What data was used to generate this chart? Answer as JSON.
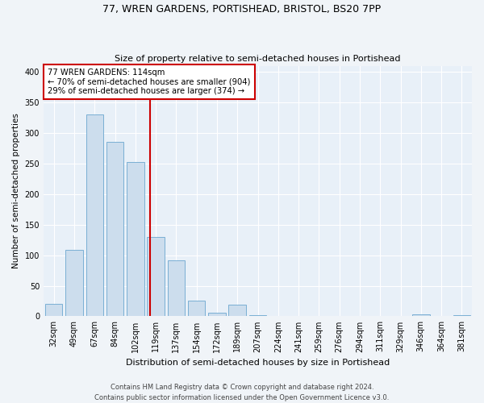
{
  "title1": "77, WREN GARDENS, PORTISHEAD, BRISTOL, BS20 7PP",
  "title2": "Size of property relative to semi-detached houses in Portishead",
  "xlabel": "Distribution of semi-detached houses by size in Portishead",
  "ylabel": "Number of semi-detached properties",
  "bar_labels": [
    "32sqm",
    "49sqm",
    "67sqm",
    "84sqm",
    "102sqm",
    "119sqm",
    "137sqm",
    "154sqm",
    "172sqm",
    "189sqm",
    "207sqm",
    "224sqm",
    "241sqm",
    "259sqm",
    "276sqm",
    "294sqm",
    "311sqm",
    "329sqm",
    "346sqm",
    "364sqm",
    "381sqm"
  ],
  "bar_values": [
    20,
    109,
    330,
    286,
    252,
    130,
    91,
    26,
    6,
    19,
    2,
    0,
    0,
    0,
    0,
    0,
    0,
    0,
    3,
    0,
    2
  ],
  "bar_color": "#ccdded",
  "bar_edge_color": "#7aafd4",
  "property_label": "77 WREN GARDENS: 114sqm",
  "annotation_line1": "← 70% of semi-detached houses are smaller (904)",
  "annotation_line2": "29% of semi-detached houses are larger (374) →",
  "vline_color": "#cc0000",
  "vline_x": 4.71,
  "annotation_box_color": "#ffffff",
  "annotation_box_edge": "#cc0000",
  "ylim": [
    0,
    410
  ],
  "yticks": [
    0,
    50,
    100,
    150,
    200,
    250,
    300,
    350,
    400
  ],
  "bg_color": "#e8f0f8",
  "fig_bg_color": "#f0f4f8",
  "footer1": "Contains HM Land Registry data © Crown copyright and database right 2024.",
  "footer2": "Contains public sector information licensed under the Open Government Licence v3.0."
}
